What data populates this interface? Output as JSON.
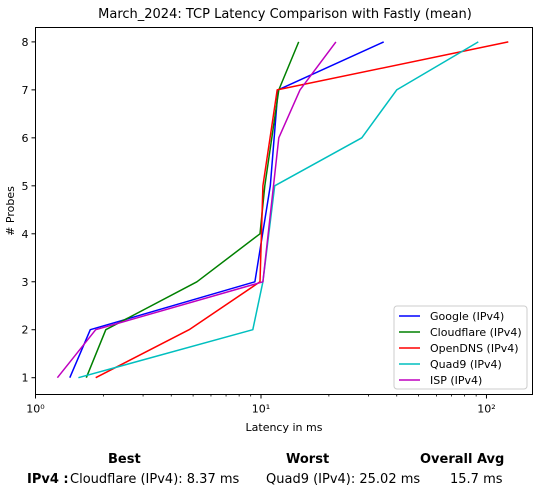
{
  "chart_data": {
    "type": "line",
    "title": "March_2024: TCP Latency Comparison with Fastly (mean)",
    "xlabel": "Latency in ms",
    "ylabel": "# Probes",
    "xscale": "log",
    "xlim": [
      1.0,
      160
    ],
    "ylim": [
      0.65,
      8.3
    ],
    "xticks": [
      {
        "value": 1,
        "label": "10⁰"
      },
      {
        "value": 10,
        "label": "10¹"
      },
      {
        "value": 100,
        "label": "10²"
      }
    ],
    "yticks": [
      1,
      2,
      3,
      4,
      5,
      6,
      7,
      8
    ],
    "grid": false,
    "legend_position": "lower-right",
    "series": [
      {
        "name": "Google (IPv4)",
        "color": "#0000ff",
        "x": [
          1.42,
          1.75,
          9.4,
          11.0,
          11.9,
          35.0
        ],
        "y": [
          1,
          2,
          3,
          5,
          7,
          8
        ]
      },
      {
        "name": "Cloudflare (IPv4)",
        "color": "#008000",
        "x": [
          1.68,
          2.05,
          5.2,
          9.9,
          10.4,
          12.0,
          14.7
        ],
        "y": [
          1,
          2,
          3,
          4,
          5,
          7,
          8
        ]
      },
      {
        "name": "OpenDNS (IPv4)",
        "color": "#ff0000",
        "x": [
          1.85,
          4.8,
          9.9,
          10.2,
          11.8,
          125.0
        ],
        "y": [
          1,
          2,
          3,
          5,
          7,
          8
        ]
      },
      {
        "name": "Quad9 (IPv4)",
        "color": "#00bfbf",
        "x": [
          1.55,
          9.2,
          10.2,
          11.5,
          28.0,
          40.0,
          92.0
        ],
        "y": [
          1,
          2,
          3,
          5,
          6,
          7,
          8
        ]
      },
      {
        "name": "ISP (IPv4)",
        "color": "#bf00bf",
        "x": [
          1.25,
          1.85,
          10.2,
          12.0,
          14.9,
          21.5
        ],
        "y": [
          1,
          2,
          3,
          6,
          7,
          8
        ]
      }
    ]
  },
  "summary": {
    "best_header": "Best",
    "worst_header": "Worst",
    "avg_header": "Overall Avg",
    "row_label": "IPv4 :",
    "best_value": "Cloudflare (IPv4): 8.37 ms",
    "worst_value": "Quad9 (IPv4): 25.02 ms",
    "avg_value": "15.7 ms"
  }
}
